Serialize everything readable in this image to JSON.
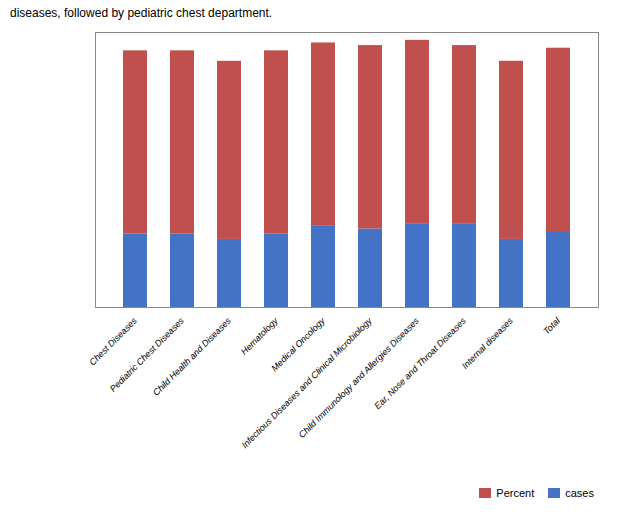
{
  "chart_data": {
    "type": "bar",
    "stacked": true,
    "title": "diseases, followed by pediatric chest department.",
    "categories": [
      "Chest Diseases",
      "Pediatric Chest Diseases",
      "Child Health and Diseases",
      "Hematology",
      "Medical Oncology",
      "Infectious Diseases and Clinical Microbiology",
      "Child Immunology and Allergies Diseases",
      "Ear, Nose and Throat Diseases",
      "Internal diseases",
      "Total"
    ],
    "series": [
      {
        "name": "cases",
        "color": "#4472C4",
        "values": [
          28,
          28,
          26,
          28,
          31,
          30,
          32,
          32,
          26,
          29
        ]
      },
      {
        "name": "Percent",
        "color": "#C0504D",
        "values": [
          70,
          70,
          68,
          70,
          70,
          70,
          70,
          68,
          68,
          70
        ]
      }
    ],
    "ylim": [
      0,
      105
    ],
    "yticks": [],
    "grid": false,
    "tick_labels": "x",
    "legend": "lower right"
  }
}
